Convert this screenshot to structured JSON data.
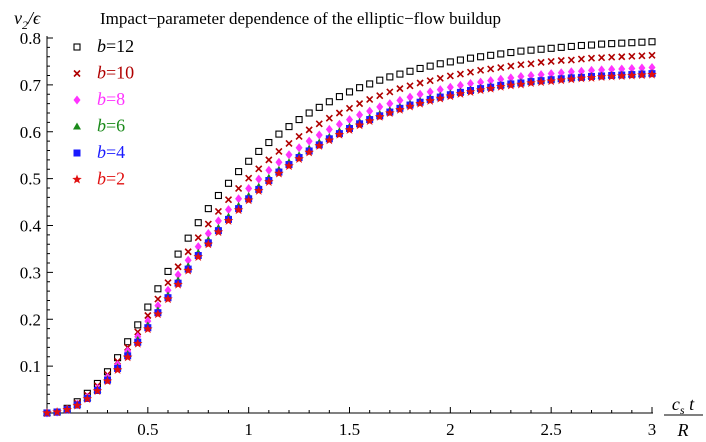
{
  "chart_data": {
    "type": "scatter",
    "title": "Impact−parameter dependence of the elliptic−flow buildup",
    "ylabel": "v2/ϵ",
    "ylabel_parts": {
      "main": "v",
      "sub": "2",
      "rest": "/ϵ"
    },
    "xlabel_parts": {
      "num_main": "c",
      "num_sub": "s",
      "num_rest": " t",
      "den": "R"
    },
    "xlim": [
      0,
      3
    ],
    "ylim": [
      0,
      0.8
    ],
    "xticks": [
      0.5,
      1,
      1.5,
      2,
      2.5,
      3
    ],
    "xtick_labels": [
      "0.5",
      "1",
      "1.5",
      "2",
      "2.5",
      "3"
    ],
    "yticks": [
      0.1,
      0.2,
      0.3,
      0.4,
      0.5,
      0.6,
      0.7,
      0.8
    ],
    "ytick_labels": [
      "0.1",
      "0.2",
      "0.3",
      "0.4",
      "0.5",
      "0.6",
      "0.7",
      "0.8"
    ],
    "grid": false,
    "legend_position": "top-left",
    "series": [
      {
        "name": "b=12",
        "marker": "open-square",
        "color": "#000000",
        "x": [
          0,
          0.05,
          0.1,
          0.15,
          0.2,
          0.25,
          0.3,
          0.35,
          0.4,
          0.45,
          0.5,
          0.55,
          0.6,
          0.65,
          0.7,
          0.75,
          0.8,
          0.85,
          0.9,
          0.95,
          1,
          1.05,
          1.1,
          1.15,
          1.2,
          1.25,
          1.3,
          1.35,
          1.4,
          1.45,
          1.5,
          1.55,
          1.6,
          1.65,
          1.7,
          1.75,
          1.8,
          1.85,
          1.9,
          1.95,
          2,
          2.05,
          2.1,
          2.15,
          2.2,
          2.25,
          2.3,
          2.35,
          2.4,
          2.45,
          2.5,
          2.55,
          2.6,
          2.65,
          2.7,
          2.75,
          2.8,
          2.85,
          2.9,
          2.95,
          3
        ],
        "y": [
          0,
          0.002,
          0.01,
          0.024,
          0.042,
          0.063,
          0.088,
          0.118,
          0.152,
          0.188,
          0.226,
          0.265,
          0.302,
          0.339,
          0.373,
          0.406,
          0.436,
          0.464,
          0.49,
          0.515,
          0.537,
          0.558,
          0.577,
          0.595,
          0.611,
          0.626,
          0.64,
          0.652,
          0.664,
          0.675,
          0.685,
          0.694,
          0.702,
          0.71,
          0.717,
          0.723,
          0.729,
          0.735,
          0.74,
          0.745,
          0.749,
          0.753,
          0.757,
          0.76,
          0.763,
          0.766,
          0.769,
          0.772,
          0.774,
          0.776,
          0.778,
          0.78,
          0.782,
          0.784,
          0.785,
          0.787,
          0.788,
          0.789,
          0.79,
          0.791,
          0.792
        ]
      },
      {
        "name": "b=10",
        "marker": "cross",
        "color": "#b00000",
        "x": [
          0,
          0.05,
          0.1,
          0.15,
          0.2,
          0.25,
          0.3,
          0.35,
          0.4,
          0.45,
          0.5,
          0.55,
          0.6,
          0.65,
          0.7,
          0.75,
          0.8,
          0.85,
          0.9,
          0.95,
          1,
          1.05,
          1.1,
          1.15,
          1.2,
          1.25,
          1.3,
          1.35,
          1.4,
          1.45,
          1.5,
          1.55,
          1.6,
          1.65,
          1.7,
          1.75,
          1.8,
          1.85,
          1.9,
          1.95,
          2,
          2.05,
          2.1,
          2.15,
          2.2,
          2.25,
          2.3,
          2.35,
          2.4,
          2.45,
          2.5,
          2.55,
          2.6,
          2.65,
          2.7,
          2.75,
          2.8,
          2.85,
          2.9,
          2.95,
          3
        ],
        "y": [
          0,
          0.002,
          0.009,
          0.021,
          0.038,
          0.058,
          0.082,
          0.11,
          0.14,
          0.173,
          0.208,
          0.243,
          0.278,
          0.312,
          0.344,
          0.374,
          0.403,
          0.43,
          0.455,
          0.479,
          0.501,
          0.521,
          0.54,
          0.558,
          0.575,
          0.59,
          0.604,
          0.617,
          0.629,
          0.64,
          0.65,
          0.66,
          0.669,
          0.677,
          0.685,
          0.692,
          0.698,
          0.704,
          0.709,
          0.714,
          0.719,
          0.723,
          0.727,
          0.731,
          0.734,
          0.737,
          0.74,
          0.743,
          0.745,
          0.748,
          0.75,
          0.752,
          0.753,
          0.755,
          0.757,
          0.758,
          0.759,
          0.76,
          0.761,
          0.762,
          0.763
        ]
      },
      {
        "name": "b=8",
        "marker": "diamond",
        "color": "#ff33ff",
        "x": [
          0,
          0.05,
          0.1,
          0.15,
          0.2,
          0.25,
          0.3,
          0.35,
          0.4,
          0.45,
          0.5,
          0.55,
          0.6,
          0.65,
          0.7,
          0.75,
          0.8,
          0.85,
          0.9,
          0.95,
          1,
          1.05,
          1.1,
          1.15,
          1.2,
          1.25,
          1.3,
          1.35,
          1.4,
          1.45,
          1.5,
          1.55,
          1.6,
          1.65,
          1.7,
          1.75,
          1.8,
          1.85,
          1.9,
          1.95,
          2,
          2.05,
          2.1,
          2.15,
          2.2,
          2.25,
          2.3,
          2.35,
          2.4,
          2.45,
          2.5,
          2.55,
          2.6,
          2.65,
          2.7,
          2.75,
          2.8,
          2.85,
          2.9,
          2.95,
          3
        ],
        "y": [
          0,
          0.002,
          0.008,
          0.019,
          0.034,
          0.053,
          0.076,
          0.103,
          0.132,
          0.163,
          0.196,
          0.229,
          0.262,
          0.295,
          0.326,
          0.355,
          0.383,
          0.41,
          0.434,
          0.457,
          0.479,
          0.499,
          0.518,
          0.535,
          0.551,
          0.566,
          0.58,
          0.593,
          0.605,
          0.616,
          0.626,
          0.636,
          0.644,
          0.653,
          0.66,
          0.667,
          0.674,
          0.68,
          0.685,
          0.69,
          0.695,
          0.699,
          0.703,
          0.706,
          0.709,
          0.712,
          0.715,
          0.718,
          0.72,
          0.722,
          0.724,
          0.726,
          0.728,
          0.729,
          0.731,
          0.732,
          0.733,
          0.734,
          0.735,
          0.736,
          0.737
        ]
      },
      {
        "name": "b=6",
        "marker": "triangle",
        "color": "#1a8a1a",
        "x": [
          0,
          0.05,
          0.1,
          0.15,
          0.2,
          0.25,
          0.3,
          0.35,
          0.4,
          0.45,
          0.5,
          0.55,
          0.6,
          0.65,
          0.7,
          0.75,
          0.8,
          0.85,
          0.9,
          0.95,
          1,
          1.05,
          1.1,
          1.15,
          1.2,
          1.25,
          1.3,
          1.35,
          1.4,
          1.45,
          1.5,
          1.55,
          1.6,
          1.65,
          1.7,
          1.75,
          1.8,
          1.85,
          1.9,
          1.95,
          2,
          2.05,
          2.1,
          2.15,
          2.2,
          2.25,
          2.3,
          2.35,
          2.4,
          2.45,
          2.5,
          2.55,
          2.6,
          2.65,
          2.7,
          2.75,
          2.8,
          2.85,
          2.9,
          2.95,
          3
        ],
        "y": [
          0,
          0.002,
          0.008,
          0.018,
          0.032,
          0.05,
          0.072,
          0.098,
          0.126,
          0.156,
          0.187,
          0.219,
          0.251,
          0.283,
          0.313,
          0.342,
          0.369,
          0.395,
          0.419,
          0.442,
          0.463,
          0.483,
          0.502,
          0.519,
          0.535,
          0.55,
          0.564,
          0.577,
          0.589,
          0.601,
          0.611,
          0.621,
          0.63,
          0.638,
          0.646,
          0.653,
          0.66,
          0.666,
          0.672,
          0.677,
          0.682,
          0.686,
          0.69,
          0.694,
          0.697,
          0.7,
          0.703,
          0.706,
          0.708,
          0.71,
          0.712,
          0.714,
          0.716,
          0.717,
          0.719,
          0.72,
          0.721,
          0.722,
          0.723,
          0.724,
          0.725
        ]
      },
      {
        "name": "b=4",
        "marker": "square",
        "color": "#1a1aff",
        "x": [
          0,
          0.05,
          0.1,
          0.15,
          0.2,
          0.25,
          0.3,
          0.35,
          0.4,
          0.45,
          0.5,
          0.55,
          0.6,
          0.65,
          0.7,
          0.75,
          0.8,
          0.85,
          0.9,
          0.95,
          1,
          1.05,
          1.1,
          1.15,
          1.2,
          1.25,
          1.3,
          1.35,
          1.4,
          1.45,
          1.5,
          1.55,
          1.6,
          1.65,
          1.7,
          1.75,
          1.8,
          1.85,
          1.9,
          1.95,
          2,
          2.05,
          2.1,
          2.15,
          2.2,
          2.25,
          2.3,
          2.35,
          2.4,
          2.45,
          2.5,
          2.55,
          2.6,
          2.65,
          2.7,
          2.75,
          2.8,
          2.85,
          2.9,
          2.95,
          3
        ],
        "y": [
          0,
          0.002,
          0.007,
          0.017,
          0.031,
          0.048,
          0.07,
          0.095,
          0.122,
          0.151,
          0.182,
          0.214,
          0.246,
          0.277,
          0.307,
          0.336,
          0.363,
          0.389,
          0.413,
          0.436,
          0.457,
          0.477,
          0.496,
          0.514,
          0.53,
          0.545,
          0.559,
          0.572,
          0.585,
          0.596,
          0.607,
          0.617,
          0.626,
          0.634,
          0.642,
          0.65,
          0.657,
          0.663,
          0.669,
          0.674,
          0.679,
          0.684,
          0.688,
          0.692,
          0.695,
          0.699,
          0.702,
          0.704,
          0.707,
          0.709,
          0.711,
          0.713,
          0.715,
          0.716,
          0.718,
          0.719,
          0.72,
          0.721,
          0.722,
          0.723,
          0.724
        ]
      },
      {
        "name": "b=2",
        "marker": "star",
        "color": "#e01010",
        "x": [
          0,
          0.05,
          0.1,
          0.15,
          0.2,
          0.25,
          0.3,
          0.35,
          0.4,
          0.45,
          0.5,
          0.55,
          0.6,
          0.65,
          0.7,
          0.75,
          0.8,
          0.85,
          0.9,
          0.95,
          1,
          1.05,
          1.1,
          1.15,
          1.2,
          1.25,
          1.3,
          1.35,
          1.4,
          1.45,
          1.5,
          1.55,
          1.6,
          1.65,
          1.7,
          1.75,
          1.8,
          1.85,
          1.9,
          1.95,
          2,
          2.05,
          2.1,
          2.15,
          2.2,
          2.25,
          2.3,
          2.35,
          2.4,
          2.45,
          2.5,
          2.55,
          2.6,
          2.65,
          2.7,
          2.75,
          2.8,
          2.85,
          2.9,
          2.95,
          3
        ],
        "y": [
          0,
          0.002,
          0.007,
          0.016,
          0.03,
          0.047,
          0.068,
          0.092,
          0.119,
          0.148,
          0.179,
          0.211,
          0.243,
          0.274,
          0.304,
          0.333,
          0.36,
          0.386,
          0.41,
          0.433,
          0.454,
          0.474,
          0.493,
          0.511,
          0.527,
          0.542,
          0.556,
          0.57,
          0.582,
          0.594,
          0.604,
          0.614,
          0.623,
          0.632,
          0.64,
          0.647,
          0.654,
          0.66,
          0.666,
          0.671,
          0.676,
          0.681,
          0.685,
          0.689,
          0.692,
          0.696,
          0.699,
          0.701,
          0.704,
          0.706,
          0.708,
          0.71,
          0.712,
          0.714,
          0.715,
          0.717,
          0.718,
          0.719,
          0.72,
          0.721,
          0.722
        ]
      }
    ]
  }
}
